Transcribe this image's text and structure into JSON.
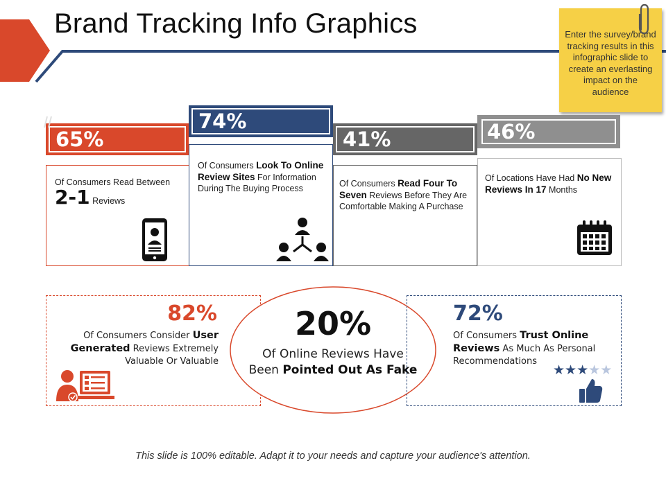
{
  "title": "Brand Tracking Info Graphics",
  "sticky_note": "Enter the survey/brand tracking results in this infographic slide to create an everlasting impact on the audience",
  "colors": {
    "orange": "#d9482b",
    "navy": "#2e4a7a",
    "gray": "#6b6b6b",
    "lightgray": "#8f8f8f"
  },
  "cards": [
    {
      "pct": "65%",
      "text_a": "Of Consumers Read Between",
      "text_big": "2-1",
      "text_b": " Reviews",
      "icon": "smartphone-user-icon"
    },
    {
      "pct": "74%",
      "text_a": "Of Consumers ",
      "text_bold": "Look To Online Review Sites",
      "text_b": " For Information During The Buying Process",
      "icon": "network-people-icon"
    },
    {
      "pct": "41%",
      "text_a": "Of Consumers ",
      "text_bold": "Read Four To Seven",
      "text_b": " Reviews Before They Are Comfortable Making A Purchase",
      "icon": ""
    },
    {
      "pct": "46%",
      "text_a": "Of Locations Have Had ",
      "text_bold": "No New Reviews In 17",
      "text_b": " Months",
      "icon": "calendar-icon"
    }
  ],
  "bottom_left": {
    "pct": "82%",
    "text_a": "Of Consumers Consider ",
    "text_bold": "User Generated",
    "text_b": " Reviews Extremely Valuable Or Valuable",
    "icon": "user-computer-icon"
  },
  "center": {
    "pct": "20%",
    "text_a": "Of Online Reviews Have Been ",
    "text_bold": "Pointed Out As Fake"
  },
  "bottom_right": {
    "pct": "72%",
    "text_a": "Of Consumers ",
    "text_bold": "Trust Online Reviews",
    "text_b": " As Much As Personal Recommendations",
    "rating": 3,
    "rating_max": 5,
    "icon": "thumbs-up-icon"
  },
  "footer": "This slide is 100% editable. Adapt it to your needs and capture your audience's attention."
}
